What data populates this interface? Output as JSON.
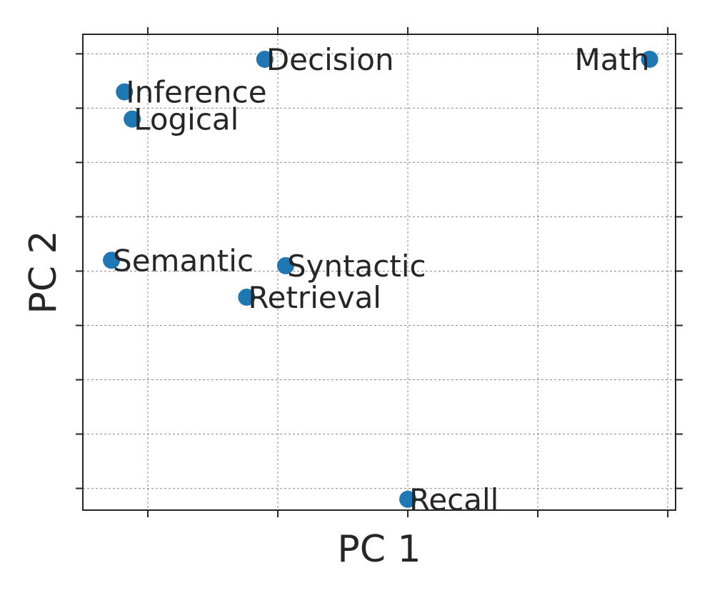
{
  "chart_data": {
    "type": "scatter",
    "title": "",
    "xlabel": "PC 1",
    "ylabel": "PC 2",
    "xlim": [
      -0.25,
      2.03
    ],
    "ylim": [
      -2.2,
      2.18
    ],
    "x_ticks": [
      0,
      0.5,
      1.0,
      1.5,
      2.0
    ],
    "y_ticks": [
      -2.0,
      -1.5,
      -1.0,
      -0.5,
      0,
      0.5,
      1.0,
      1.5,
      2.0
    ],
    "tick_labels_visible": false,
    "grid": true,
    "marker_color": "#1f77b4",
    "points": [
      {
        "label": "Decision",
        "x": 0.45,
        "y": 1.95
      },
      {
        "label": "Math",
        "x": 1.93,
        "y": 1.95
      },
      {
        "label": "Inference",
        "x": -0.09,
        "y": 1.65
      },
      {
        "label": "Logical",
        "x": -0.06,
        "y": 1.4
      },
      {
        "label": "Semantic",
        "x": -0.14,
        "y": 0.1
      },
      {
        "label": "Syntactic",
        "x": 0.53,
        "y": 0.05
      },
      {
        "label": "Retrieval",
        "x": 0.38,
        "y": -0.24
      },
      {
        "label": "Recall",
        "x": 1.0,
        "y": -2.1
      }
    ]
  }
}
